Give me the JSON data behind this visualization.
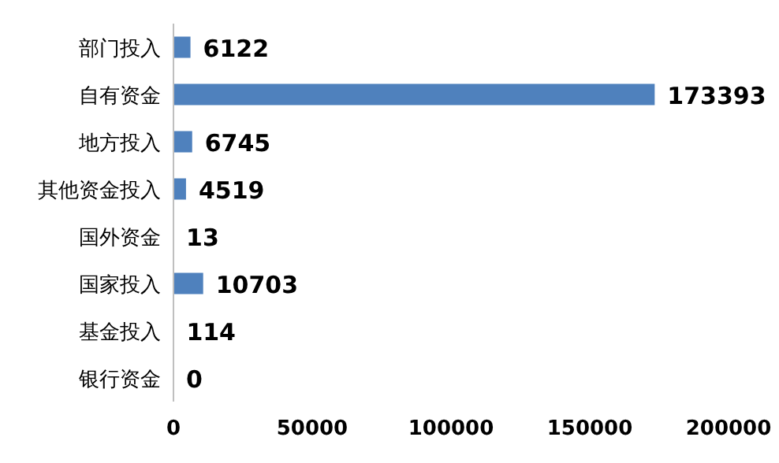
{
  "chart_data": {
    "type": "bar",
    "orientation": "horizontal",
    "categories": [
      "部门投入",
      "自有资金",
      "地方投入",
      "其他资金投入",
      "国外资金",
      "国家投入",
      "基金投入",
      "银行资金"
    ],
    "values": [
      6122,
      173393,
      6745,
      4519,
      13,
      10703,
      114,
      0
    ],
    "color": "#4f81bd",
    "xlim": [
      0,
      200000
    ],
    "xticks": [
      0,
      50000,
      100000,
      150000,
      200000
    ],
    "data_labels": true,
    "grid": false
  }
}
